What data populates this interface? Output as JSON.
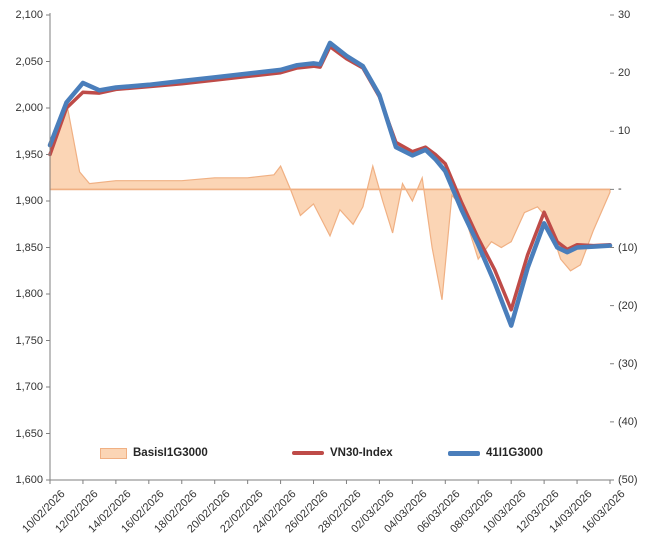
{
  "chart_data": {
    "type": "combo",
    "title": "",
    "x_tick_labels": [
      "10/02/2026",
      "12/02/2026",
      "14/02/2026",
      "16/02/2026",
      "18/02/2026",
      "20/02/2026",
      "22/02/2026",
      "24/02/2026",
      "26/02/2026",
      "28/02/2026",
      "02/03/2026",
      "04/03/2026",
      "06/03/2026",
      "08/03/2026",
      "10/03/2026",
      "12/03/2026",
      "14/03/2026",
      "16/03/2026"
    ],
    "left_axis": {
      "min": 1600,
      "max": 2100,
      "step": 50,
      "tick_labels": [
        "2,100",
        "2,050",
        "2,000",
        "1,950",
        "1,900",
        "1,850",
        "1,800",
        "1,750",
        "1,700",
        "1,650",
        "1,600"
      ]
    },
    "right_axis": {
      "min": -50,
      "max": 30,
      "step": 10,
      "tick_labels": [
        "30",
        "20",
        "10",
        "-",
        "(10)",
        "(20)",
        "(30)",
        "(40)",
        "(50)"
      ]
    },
    "grid": "off",
    "legend_position": "bottom-inside",
    "series": [
      {
        "name": "BasisI1G3000",
        "type": "area",
        "axis": "right",
        "fill": "#FBD5B5",
        "stroke": "#F0B083",
        "points": [
          [
            0,
            6
          ],
          [
            0.5,
            15
          ],
          [
            0.9,
            3
          ],
          [
            1.2,
            1
          ],
          [
            2,
            1.5
          ],
          [
            3,
            1.5
          ],
          [
            4,
            1.5
          ],
          [
            5,
            2
          ],
          [
            6,
            2
          ],
          [
            6.8,
            2.5
          ],
          [
            7,
            4
          ],
          [
            7.3,
            0
          ],
          [
            7.6,
            -4.5
          ],
          [
            8,
            -2.5
          ],
          [
            8.5,
            -8
          ],
          [
            8.8,
            -3.5
          ],
          [
            9.2,
            -6
          ],
          [
            9.5,
            -3
          ],
          [
            9.8,
            4
          ],
          [
            10.1,
            -2
          ],
          [
            10.4,
            -7.5
          ],
          [
            10.7,
            1
          ],
          [
            11,
            -2
          ],
          [
            11.3,
            2
          ],
          [
            11.6,
            -10
          ],
          [
            11.9,
            -19
          ],
          [
            12.2,
            -1
          ],
          [
            12.5,
            -3
          ],
          [
            13,
            -12
          ],
          [
            13.4,
            -9
          ],
          [
            13.7,
            -10
          ],
          [
            14,
            -9
          ],
          [
            14.4,
            -4
          ],
          [
            14.8,
            -3
          ],
          [
            15.1,
            -5
          ],
          [
            15.5,
            -12
          ],
          [
            15.8,
            -14
          ],
          [
            16.1,
            -13
          ],
          [
            16.5,
            -7
          ],
          [
            17,
            -0.5
          ]
        ]
      },
      {
        "name": "VN30-Index",
        "type": "line",
        "axis": "left",
        "color": "#BE4B48",
        "width": 3.5,
        "points": [
          [
            0,
            1950
          ],
          [
            0.5,
            2000
          ],
          [
            1,
            2017
          ],
          [
            1.5,
            2016
          ],
          [
            2,
            2020
          ],
          [
            3,
            2023
          ],
          [
            4,
            2026
          ],
          [
            5,
            2030
          ],
          [
            6,
            2034
          ],
          [
            7,
            2038
          ],
          [
            7.5,
            2043
          ],
          [
            8,
            2045
          ],
          [
            8.2,
            2044
          ],
          [
            8.5,
            2066
          ],
          [
            9,
            2053
          ],
          [
            9.5,
            2043
          ],
          [
            10,
            2012
          ],
          [
            10.5,
            1963
          ],
          [
            11,
            1953
          ],
          [
            11.4,
            1958
          ],
          [
            11.7,
            1950
          ],
          [
            12,
            1940
          ],
          [
            12.5,
            1898
          ],
          [
            13,
            1860
          ],
          [
            13.5,
            1826
          ],
          [
            14,
            1783
          ],
          [
            14.5,
            1842
          ],
          [
            15,
            1888
          ],
          [
            15.4,
            1856
          ],
          [
            15.7,
            1848
          ],
          [
            16,
            1853
          ],
          [
            16.5,
            1852
          ],
          [
            17,
            1853
          ]
        ]
      },
      {
        "name": "41I1G3000",
        "type": "line",
        "axis": "left",
        "color": "#4A7EBB",
        "width": 4.5,
        "points": [
          [
            0,
            1960
          ],
          [
            0.5,
            2006
          ],
          [
            1,
            2027
          ],
          [
            1.5,
            2019
          ],
          [
            2,
            2022
          ],
          [
            3,
            2025
          ],
          [
            4,
            2029
          ],
          [
            5,
            2033
          ],
          [
            6,
            2037
          ],
          [
            7,
            2041
          ],
          [
            7.5,
            2046
          ],
          [
            8,
            2048
          ],
          [
            8.2,
            2047
          ],
          [
            8.5,
            2070
          ],
          [
            9,
            2056
          ],
          [
            9.5,
            2045
          ],
          [
            10,
            2014
          ],
          [
            10.5,
            1958
          ],
          [
            11,
            1949
          ],
          [
            11.4,
            1955
          ],
          [
            11.7,
            1945
          ],
          [
            12,
            1932
          ],
          [
            12.5,
            1890
          ],
          [
            13,
            1853
          ],
          [
            13.5,
            1812
          ],
          [
            14,
            1766
          ],
          [
            14.5,
            1828
          ],
          [
            15,
            1876
          ],
          [
            15.4,
            1850
          ],
          [
            15.7,
            1845
          ],
          [
            16,
            1850
          ],
          [
            16.5,
            1851
          ],
          [
            17,
            1852
          ]
        ]
      }
    ]
  },
  "colors": {
    "axis": "#7F7F7F",
    "tick_text": "#333333",
    "background": "#FFFFFF"
  }
}
